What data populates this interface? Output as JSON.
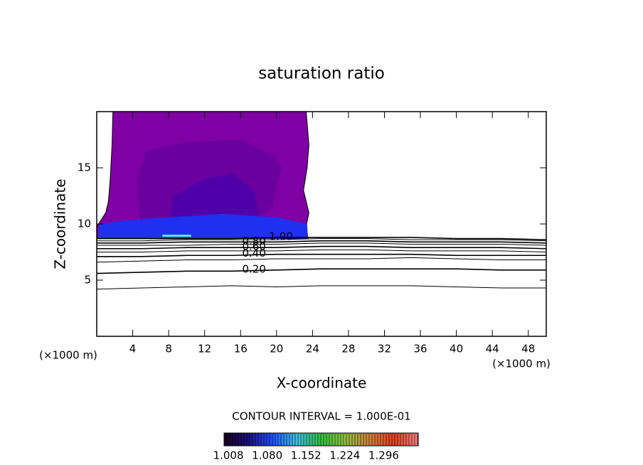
{
  "chart_data": {
    "type": "contour",
    "title": "saturation ratio",
    "xlabel": "X-coordinate",
    "ylabel": "Z-coordinate",
    "xunit_left": "(×1000 m)",
    "xunit_right": "(×1000 m)",
    "xlim": [
      0,
      50
    ],
    "ylim": [
      0,
      20
    ],
    "xticks": [
      4,
      8,
      12,
      16,
      20,
      24,
      28,
      32,
      36,
      40,
      44,
      48
    ],
    "yticks": [
      5,
      10,
      15
    ],
    "regions": [
      {
        "color": "#7f00a4",
        "x": [
          1.8,
          1.7,
          1.5,
          1.3,
          1.0,
          0.2,
          0.0,
          0.0,
          23.5,
          23.3,
          23.6,
          23.0,
          23.4,
          23.6,
          23.3
        ],
        "z": [
          20,
          17,
          14,
          12,
          11,
          10,
          9.8,
          8.7,
          8.7,
          9.8,
          11,
          13,
          15,
          17,
          20
        ]
      },
      {
        "color": "#6a00a0",
        "x": [
          5,
          4.5,
          5.5,
          10,
          16,
          20,
          20.5,
          19.5,
          16,
          10
        ],
        "z": [
          9,
          14,
          16.5,
          17.3,
          17.5,
          16,
          15,
          11.5,
          9,
          9
        ]
      },
      {
        "color": "#5000a8",
        "x": [
          8,
          8.5,
          12,
          15,
          17.5,
          18,
          16.5
        ],
        "z": [
          9.5,
          12.5,
          14,
          14.5,
          13,
          11,
          9.5
        ]
      },
      {
        "color": "#2030f0",
        "x": [
          0.1,
          0.3,
          3,
          8,
          14,
          20,
          23.4,
          23.5
        ],
        "z": [
          8.7,
          10,
          10.3,
          10.6,
          10.9,
          10.6,
          10.0,
          8.7
        ]
      },
      {
        "color": "#60e0f0",
        "x": [
          7.3,
          7.3,
          10.5,
          10.5
        ],
        "z": [
          8.85,
          9.05,
          9.05,
          8.85
        ]
      }
    ],
    "contour_x": [
      0,
      5,
      10,
      15,
      20,
      25,
      30,
      35,
      40,
      45,
      50
    ],
    "contours": [
      {
        "z": [
          4.2,
          4.3,
          4.4,
          4.5,
          4.4,
          4.5,
          4.5,
          4.5,
          4.4,
          4.3,
          4.3
        ]
      },
      {
        "label": "0.20",
        "z": [
          5.6,
          5.7,
          5.8,
          5.8,
          5.9,
          6.0,
          6.0,
          6.0,
          6.0,
          5.9,
          5.9
        ]
      },
      {
        "z": [
          6.6,
          6.7,
          6.8,
          6.8,
          6.9,
          6.9,
          6.9,
          7.0,
          6.9,
          6.8,
          6.8
        ]
      },
      {
        "label": "0.40",
        "z": [
          7.1,
          7.1,
          7.2,
          7.2,
          7.3,
          7.3,
          7.3,
          7.3,
          7.2,
          7.2,
          7.2
        ]
      },
      {
        "z": [
          7.5,
          7.5,
          7.6,
          7.6,
          7.6,
          7.7,
          7.7,
          7.6,
          7.6,
          7.6,
          7.5
        ]
      },
      {
        "label": "0.60",
        "z": [
          7.8,
          7.8,
          7.9,
          7.9,
          7.9,
          8.0,
          8.0,
          7.9,
          7.9,
          7.9,
          7.8
        ]
      },
      {
        "z": [
          8.1,
          8.1,
          8.1,
          8.2,
          8.2,
          8.3,
          8.3,
          8.2,
          8.2,
          8.2,
          8.1
        ]
      },
      {
        "label": "0.80",
        "z": [
          8.3,
          8.3,
          8.4,
          8.4,
          8.4,
          8.5,
          8.5,
          8.4,
          8.4,
          8.4,
          8.3
        ]
      },
      {
        "z": [
          8.5,
          8.5,
          8.6,
          8.6,
          8.6,
          8.7,
          8.7,
          8.6,
          8.6,
          8.6,
          8.5
        ]
      },
      {
        "label": "1.00",
        "z": [
          8.7,
          8.7,
          8.7,
          8.7,
          8.8,
          8.8,
          8.8,
          8.8,
          8.7,
          8.7,
          8.6
        ]
      }
    ],
    "colorbar": {
      "title": "CONTOUR INTERVAL = 1.000E-01",
      "lim": [
        1.0,
        1.36
      ],
      "ticks": [
        1.008,
        {
          "value": 1.08,
          "label": "1.080"
        },
        1.152,
        1.224,
        1.296
      ],
      "colors": [
        "#1a0020",
        "#1a1080",
        "#2050ff",
        "#40c0e0",
        "#30c040",
        "#90c040",
        "#d08040",
        "#e04020",
        "#f08080"
      ]
    }
  }
}
